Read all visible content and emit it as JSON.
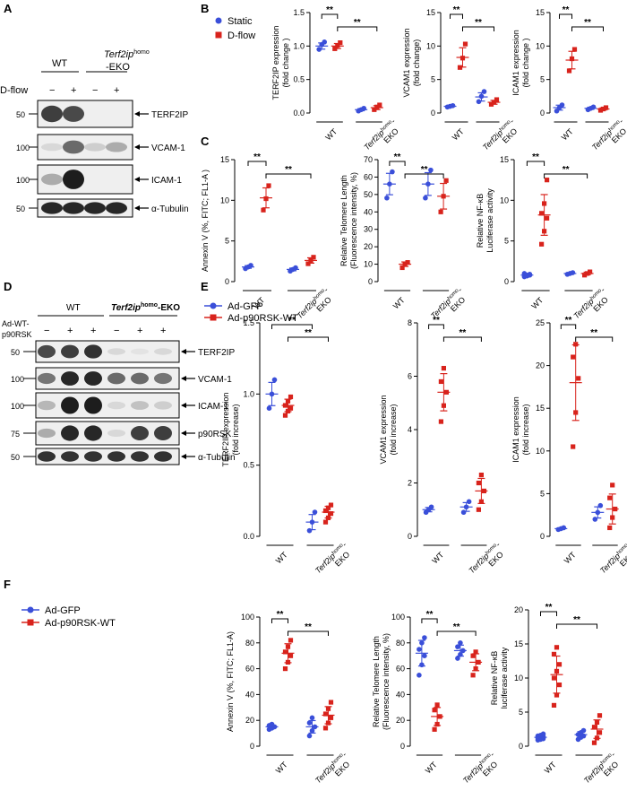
{
  "panels": {
    "A": "A",
    "B": "B",
    "C": "C",
    "D": "D",
    "E": "E",
    "F": "F"
  },
  "blot_A": {
    "group_wt": "WT",
    "group_ko_prefix": "Terf2ip",
    "group_ko_sup": "homo",
    "group_ko_suffix": "-EKO",
    "condition": "D-flow",
    "lane_signs": [
      "−",
      "+",
      "−",
      "+"
    ],
    "bands": [
      {
        "label": "TERF2IP",
        "mw": "50"
      },
      {
        "label": "VCAM-1",
        "mw": "100"
      },
      {
        "label": "ICAM-1",
        "mw": "100"
      },
      {
        "label": "α-Tubulin",
        "mw": "50"
      }
    ]
  },
  "blot_D": {
    "group_wt": "WT",
    "group_ko": "Terf2ip",
    "group_ko_sup": "homo",
    "group_ko_suffix": "-EKO",
    "condition_line1": "Ad-WT-",
    "condition_line2": "p90RSK",
    "lane_signs": [
      "−",
      "+",
      "+",
      "−",
      "+",
      "+"
    ],
    "bands": [
      {
        "label": "TERF2IP",
        "mw": "50"
      },
      {
        "label": "VCAM-1",
        "mw": "100"
      },
      {
        "label": "ICAM-1",
        "mw": "100"
      },
      {
        "label": "p90RSK",
        "mw": "75"
      },
      {
        "label": "α-Tubulin",
        "mw": "50"
      }
    ]
  },
  "legend_B": [
    "Static",
    "D-flow"
  ],
  "legend_E": [
    "Ad-GFP",
    "Ad-p90RSK-WT"
  ],
  "legend_F": [
    "Ad-GFP",
    "Ad-p90RSK-WT"
  ],
  "colors": {
    "blue": "#3a4fd9",
    "red": "#d8231c"
  },
  "sig": "**",
  "xcats": {
    "wt": "WT",
    "ko_italic": "Terf2ip",
    "ko_sup": "homo",
    "ko_suffix": "-",
    "ko_line2": "EKO"
  },
  "chart_data": [
    {
      "id": "B1",
      "type": "scatter",
      "ylabel": "TERF2IP expression",
      "ylabel2": "(fold change )",
      "yticks": [
        "0.0",
        "0.5",
        "1.0",
        "1.5"
      ],
      "ylim": [
        0,
        1.5
      ],
      "categories": [
        "WT",
        "Terf2ip homo-EKO"
      ],
      "series": [
        {
          "name": "Static",
          "values": [
            [
              0.95,
              1.02,
              1.06
            ],
            [
              0.03,
              0.05,
              0.07
            ]
          ],
          "mean": [
            1.0,
            0.05
          ]
        },
        {
          "name": "D-flow",
          "values": [
            [
              0.96,
              1.01,
              1.05
            ],
            [
              0.05,
              0.09,
              0.12
            ]
          ],
          "mean": [
            1.0,
            0.08
          ]
        }
      ]
    },
    {
      "id": "B2",
      "type": "scatter",
      "ylabel": "VCAM1 expression",
      "ylabel2": "(fold change)",
      "yticks": [
        "0",
        "5",
        "10",
        "15"
      ],
      "ylim": [
        0,
        15
      ],
      "categories": [
        "WT",
        "Terf2ip homo-EKO"
      ],
      "series": [
        {
          "name": "Static",
          "values": [
            [
              0.9,
              1.0,
              1.1
            ],
            [
              1.7,
              2.5,
              3.2
            ]
          ],
          "mean": [
            1.0,
            2.4
          ]
        },
        {
          "name": "D-flow",
          "values": [
            [
              6.8,
              8.2,
              10.3
            ],
            [
              1.3,
              1.6,
              2.0
            ]
          ],
          "mean": [
            8.3,
            1.6
          ]
        }
      ]
    },
    {
      "id": "B3",
      "type": "scatter",
      "ylabel": "ICAM1 expression",
      "ylabel2": "(fold change )",
      "yticks": [
        "0",
        "5",
        "10",
        "15"
      ],
      "ylim": [
        0,
        15
      ],
      "categories": [
        "WT",
        "Terf2ip homo-EKO"
      ],
      "series": [
        {
          "name": "Static",
          "values": [
            [
              0.3,
              0.8,
              1.2
            ],
            [
              0.5,
              0.7,
              0.9
            ]
          ],
          "mean": [
            0.8,
            0.7
          ]
        },
        {
          "name": "D-flow",
          "values": [
            [
              6.3,
              8.1,
              9.5
            ],
            [
              0.4,
              0.6,
              0.8
            ]
          ],
          "mean": [
            7.9,
            0.6
          ]
        }
      ]
    },
    {
      "id": "C1",
      "type": "scatter",
      "ylabel": "Annexin V (%, FITC; FL1-A )",
      "ylabel2": "",
      "yticks": [
        "0",
        "5",
        "10",
        "15"
      ],
      "ylim": [
        0,
        15
      ],
      "categories": [
        "WT",
        "Terf2ip homo-EKO"
      ],
      "series": [
        {
          "name": "Static",
          "values": [
            [
              1.6,
              1.8,
              2.0
            ],
            [
              1.3,
              1.5,
              1.7
            ]
          ],
          "mean": [
            1.8,
            1.5
          ]
        },
        {
          "name": "D-flow",
          "values": [
            [
              8.8,
              10.2,
              11.8
            ],
            [
              2.2,
              2.6,
              3.0
            ]
          ],
          "mean": [
            10.3,
            2.6
          ]
        }
      ]
    },
    {
      "id": "C2",
      "type": "scatter",
      "ylabel": "Relative Telomere Length",
      "ylabel2": "(Fluorescence intensity, %)",
      "yticks": [
        "0",
        "10",
        "20",
        "30",
        "40",
        "50",
        "60",
        "70"
      ],
      "ylim": [
        0,
        70
      ],
      "categories": [
        "WT",
        "Terf2ip homo-EKO"
      ],
      "series": [
        {
          "name": "Static",
          "values": [
            [
              48,
              56,
              63
            ],
            [
              48,
              56,
              64
            ]
          ],
          "mean": [
            56,
            56
          ]
        },
        {
          "name": "D-flow",
          "values": [
            [
              8,
              10,
              11
            ],
            [
              40,
              49,
              58
            ]
          ],
          "mean": [
            10,
            49
          ]
        }
      ]
    },
    {
      "id": "C3",
      "type": "scatter",
      "ylabel": "Relative NF-κB",
      "ylabel2": "Luciferase activity",
      "yticks": [
        "0",
        "5",
        "10",
        "15"
      ],
      "ylim": [
        0,
        15
      ],
      "categories": [
        "WT",
        "Terf2ip homo-EKO"
      ],
      "series": [
        {
          "name": "Static",
          "values": [
            [
              0.6,
              0.8,
              0.9,
              1.0,
              0.7,
              0.8
            ],
            [
              0.9,
              1.0,
              1.1
            ]
          ],
          "mean": [
            0.8,
            1.0
          ]
        },
        {
          "name": "D-flow",
          "values": [
            [
              4.6,
              6.2,
              7.8,
              8.4,
              9.6,
              12.5
            ],
            [
              0.8,
              1.0,
              1.2
            ]
          ],
          "mean": [
            8.2,
            1.0
          ]
        }
      ]
    },
    {
      "id": "E1",
      "type": "scatter",
      "ylabel": "TERF2IP expression",
      "ylabel2": "(fold increase)",
      "yticks": [
        "0.0",
        "0.5",
        "1.0",
        "1.5"
      ],
      "ylim": [
        0,
        1.5
      ],
      "categories": [
        "WT",
        "Terf2ip homo-EKO"
      ],
      "series": [
        {
          "name": "Ad-GFP",
          "values": [
            [
              0.9,
              1.0,
              1.1
            ],
            [
              0.04,
              0.1,
              0.17
            ]
          ],
          "mean": [
            1.0,
            0.1
          ]
        },
        {
          "name": "Ad-p90RSK-WT",
          "values": [
            [
              0.85,
              0.88,
              0.9,
              0.92,
              0.95,
              0.98
            ],
            [
              0.1,
              0.13,
              0.16,
              0.18,
              0.2,
              0.22
            ]
          ],
          "mean": [
            0.92,
            0.17
          ]
        }
      ]
    },
    {
      "id": "E2",
      "type": "scatter",
      "ylabel": "VCAM1 expression",
      "ylabel2": "(fold increase)",
      "yticks": [
        "0",
        "2",
        "4",
        "6",
        "8"
      ],
      "ylim": [
        0,
        8
      ],
      "categories": [
        "WT",
        "Terf2ip homo-EKO"
      ],
      "series": [
        {
          "name": "Ad-GFP",
          "values": [
            [
              0.9,
              1.0,
              1.1
            ],
            [
              0.9,
              1.1,
              1.3
            ]
          ],
          "mean": [
            1.0,
            1.1
          ]
        },
        {
          "name": "Ad-p90RSK-WT",
          "values": [
            [
              4.3,
              4.9,
              5.4,
              5.8,
              6.3
            ],
            [
              1.0,
              1.3,
              1.7,
              2.0,
              2.3
            ]
          ],
          "mean": [
            5.4,
            1.7
          ]
        }
      ]
    },
    {
      "id": "E3",
      "type": "scatter",
      "ylabel": "ICAM1 expression",
      "ylabel2": "(fold increase)",
      "yticks": [
        "0",
        "5",
        "10",
        "15",
        "20",
        "25"
      ],
      "ylim": [
        0,
        25
      ],
      "categories": [
        "WT",
        "Terf2ip homo-EKO"
      ],
      "series": [
        {
          "name": "Ad-GFP",
          "values": [
            [
              0.8,
              0.9,
              1.0
            ],
            [
              2.0,
              2.8,
              3.6
            ]
          ],
          "mean": [
            0.9,
            2.8
          ]
        },
        {
          "name": "Ad-p90RSK-WT",
          "values": [
            [
              10.5,
              14.5,
              18.5,
              21.0,
              22.5
            ],
            [
              1.0,
              2.2,
              3.2,
              4.5,
              6.0
            ]
          ],
          "mean": [
            18.0,
            3.2
          ]
        }
      ]
    },
    {
      "id": "F1",
      "type": "scatter",
      "ylabel": "Annexin V (%, FITC; FL1-A)",
      "ylabel2": "",
      "yticks": [
        "0",
        "20",
        "40",
        "60",
        "80",
        "100"
      ],
      "ylim": [
        0,
        100
      ],
      "categories": [
        "WT",
        "Terf2ip homo-EKO"
      ],
      "series": [
        {
          "name": "Ad-GFP",
          "values": [
            [
              13,
              14,
              15,
              16,
              17
            ],
            [
              8,
              12,
              15,
              18,
              22
            ]
          ],
          "mean": [
            15,
            15
          ]
        },
        {
          "name": "Ad-p90RSK-WT",
          "values": [
            [
              60,
              65,
              70,
              73,
              77,
              82
            ],
            [
              14,
              18,
              22,
              25,
              29,
              34
            ]
          ],
          "mean": [
            72,
            24
          ]
        }
      ]
    },
    {
      "id": "F2",
      "type": "scatter",
      "ylabel": "Relative Telomere Length",
      "ylabel2": "(Fluorescence intensity, %)",
      "yticks": [
        "0",
        "20",
        "40",
        "60",
        "80",
        "100"
      ],
      "ylim": [
        0,
        100
      ],
      "categories": [
        "WT",
        "Terf2ip homo-EKO"
      ],
      "series": [
        {
          "name": "Ad-GFP",
          "values": [
            [
              55,
              63,
              70,
              75,
              80,
              84
            ],
            [
              68,
              71,
              74,
              77,
              80
            ]
          ],
          "mean": [
            72,
            74
          ]
        },
        {
          "name": "Ad-p90RSK-WT",
          "values": [
            [
              13,
              17,
              23,
              28,
              32
            ],
            [
              55,
              60,
              65,
              70,
              73
            ]
          ],
          "mean": [
            23,
            65
          ]
        }
      ]
    },
    {
      "id": "F3",
      "type": "scatter",
      "ylabel": "Relative NF-κB",
      "ylabel2": "luciferase activity",
      "yticks": [
        "0",
        "5",
        "10",
        "15",
        "20"
      ],
      "ylim": [
        0,
        20
      ],
      "categories": [
        "WT",
        "Terf2ip homo-EKO"
      ],
      "series": [
        {
          "name": "Ad-GFP",
          "values": [
            [
              0.9,
              1.0,
              1.1,
              1.2,
              1.3,
              1.4,
              1.5,
              1.6,
              1.8
            ],
            [
              1.0,
              1.3,
              1.5,
              1.7,
              2.0,
              2.3
            ]
          ],
          "mean": [
            1.3,
            1.7
          ]
        },
        {
          "name": "Ad-p90RSK-WT",
          "values": [
            [
              6.0,
              7.5,
              9.0,
              10.0,
              11.0,
              12.0,
              13.5,
              14.5
            ],
            [
              0.5,
              1.2,
              2.0,
              2.8,
              3.5,
              4.5
            ]
          ],
          "mean": [
            10.5,
            2.5
          ]
        }
      ]
    }
  ]
}
